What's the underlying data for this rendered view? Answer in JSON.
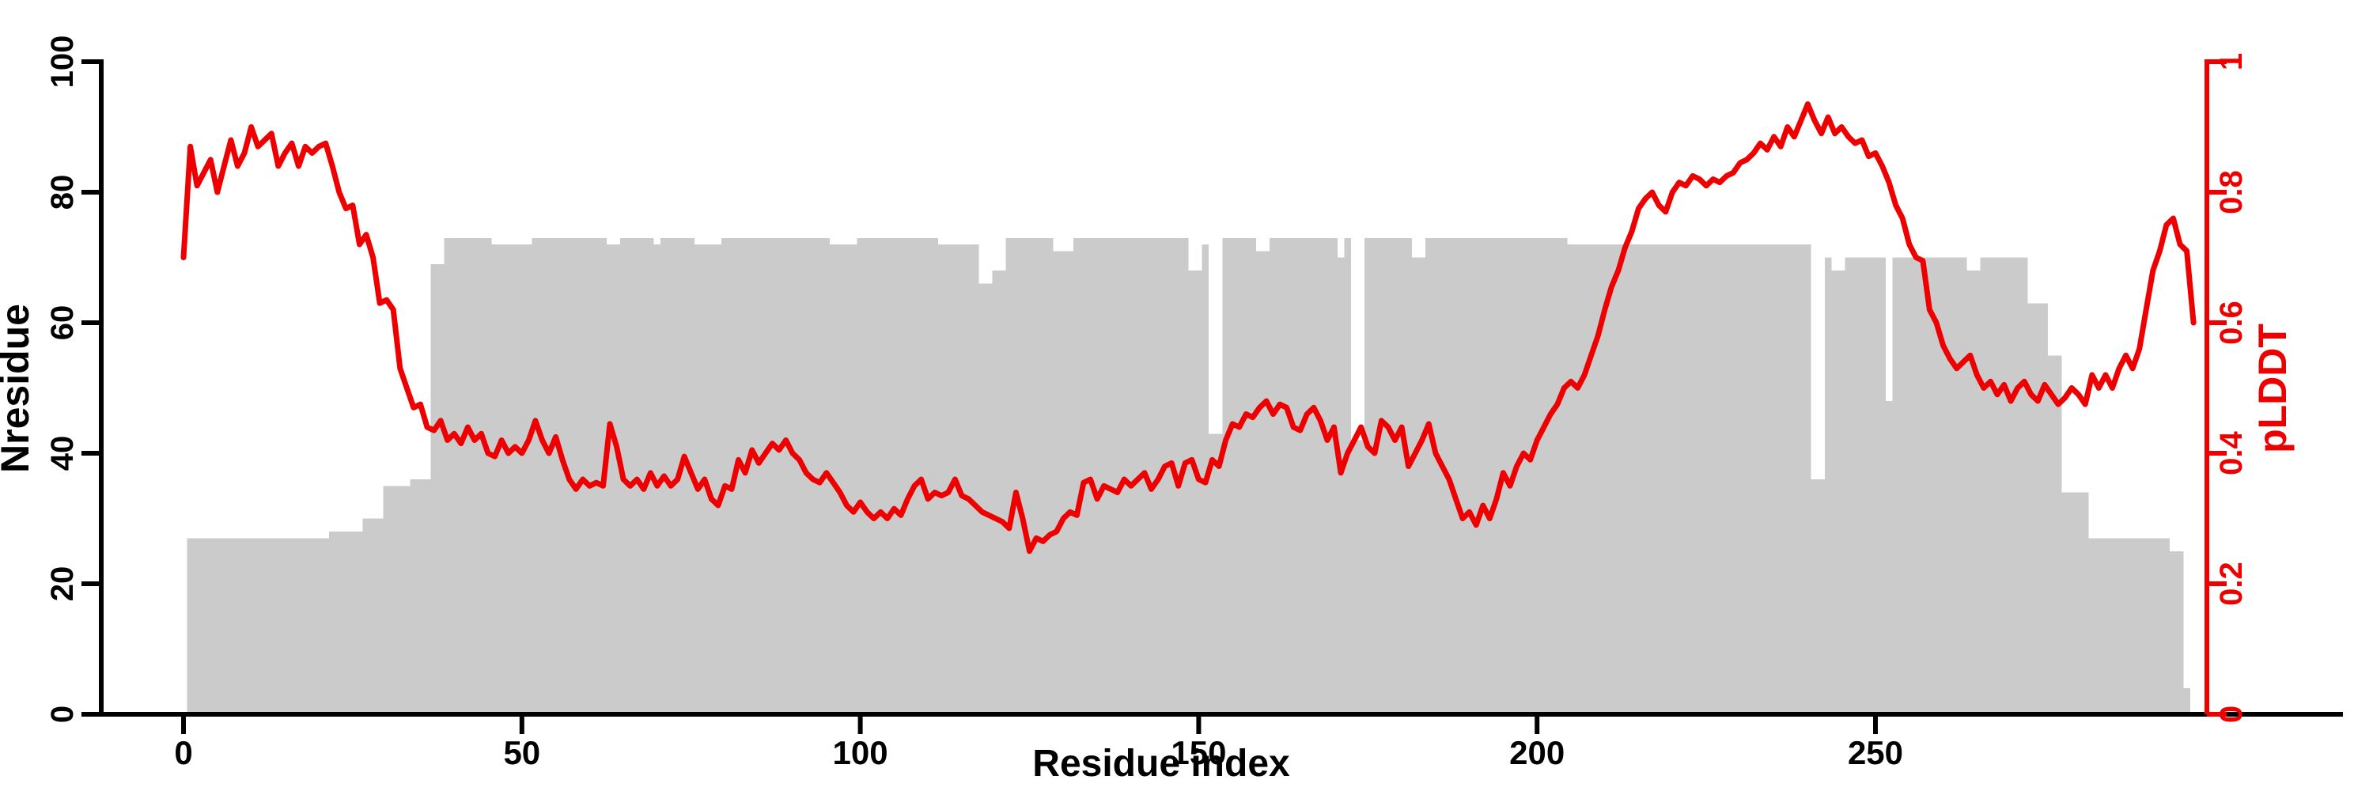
{
  "figure": {
    "background": "#ffffff",
    "bar_color": "#cbcbcb",
    "line_color": "#ee0000",
    "axis_color": "#000000"
  },
  "chart_data": {
    "type": "combo",
    "title": "",
    "legend": "none",
    "grid": false,
    "x": {
      "label": "Residue index",
      "ticks": [
        0,
        50,
        100,
        150,
        200,
        250
      ],
      "min": 0,
      "max": 297
    },
    "y_left": {
      "label": "Nresidue",
      "ticks": [
        0,
        20,
        40,
        60,
        80,
        100
      ],
      "min": 0,
      "max": 100,
      "color": "#000000"
    },
    "y_right": {
      "label": "pLDDT",
      "ticks": [
        0,
        0.2,
        0.4,
        0.6,
        0.8,
        1
      ],
      "min": 0,
      "max": 1,
      "color": "#ee0000"
    },
    "series": [
      {
        "name": "Nresidue",
        "type": "bar",
        "axis": "left",
        "color": "#cbcbcb",
        "segments": [
          [
            1,
            21,
            27
          ],
          [
            22,
            26,
            28
          ],
          [
            27,
            29,
            30
          ],
          [
            30,
            33,
            35
          ],
          [
            34,
            36,
            36
          ],
          [
            37,
            38,
            69
          ],
          [
            39,
            45,
            73
          ],
          [
            46,
            51,
            72
          ],
          [
            52,
            62,
            73
          ],
          [
            63,
            64,
            72
          ],
          [
            65,
            69,
            73
          ],
          [
            70,
            70,
            72
          ],
          [
            71,
            75,
            73
          ],
          [
            76,
            79,
            72
          ],
          [
            80,
            95,
            73
          ],
          [
            96,
            99,
            72
          ],
          [
            100,
            111,
            73
          ],
          [
            112,
            117,
            72
          ],
          [
            118,
            119,
            66
          ],
          [
            120,
            121,
            68
          ],
          [
            122,
            128,
            73
          ],
          [
            129,
            131,
            71
          ],
          [
            132,
            148,
            73
          ],
          [
            149,
            150,
            68
          ],
          [
            151,
            151,
            72
          ],
          [
            152,
            153,
            43
          ],
          [
            154,
            158,
            73
          ],
          [
            159,
            160,
            71
          ],
          [
            161,
            170,
            73
          ],
          [
            171,
            171,
            70
          ],
          [
            172,
            172,
            73
          ],
          [
            173,
            174,
            42
          ],
          [
            175,
            181,
            73
          ],
          [
            182,
            183,
            70
          ],
          [
            184,
            204,
            73
          ],
          [
            205,
            240,
            72
          ],
          [
            241,
            242,
            36
          ],
          [
            243,
            243,
            70
          ],
          [
            244,
            245,
            68
          ],
          [
            246,
            251,
            70
          ],
          [
            252,
            252,
            48
          ],
          [
            253,
            263,
            70
          ],
          [
            264,
            265,
            68
          ],
          [
            266,
            272,
            70
          ],
          [
            273,
            275,
            63
          ],
          [
            276,
            277,
            55
          ],
          [
            278,
            281,
            34
          ],
          [
            282,
            293,
            27
          ],
          [
            294,
            295,
            25
          ],
          [
            296,
            296,
            4
          ]
        ]
      },
      {
        "name": "pLDDT",
        "type": "line",
        "axis": "right",
        "color": "#ee0000",
        "x_start": 0,
        "values": [
          0.7,
          0.87,
          0.81,
          0.83,
          0.85,
          0.8,
          0.84,
          0.88,
          0.84,
          0.86,
          0.9,
          0.87,
          0.88,
          0.89,
          0.84,
          0.86,
          0.875,
          0.84,
          0.87,
          0.86,
          0.87,
          0.875,
          0.84,
          0.8,
          0.775,
          0.78,
          0.72,
          0.735,
          0.7,
          0.63,
          0.635,
          0.62,
          0.53,
          0.5,
          0.47,
          0.475,
          0.44,
          0.435,
          0.45,
          0.42,
          0.43,
          0.415,
          0.44,
          0.42,
          0.43,
          0.4,
          0.395,
          0.42,
          0.4,
          0.41,
          0.4,
          0.42,
          0.45,
          0.42,
          0.4,
          0.425,
          0.39,
          0.36,
          0.345,
          0.36,
          0.35,
          0.355,
          0.35,
          0.445,
          0.41,
          0.36,
          0.35,
          0.36,
          0.345,
          0.37,
          0.35,
          0.365,
          0.35,
          0.36,
          0.395,
          0.37,
          0.345,
          0.36,
          0.33,
          0.32,
          0.35,
          0.345,
          0.39,
          0.37,
          0.405,
          0.385,
          0.4,
          0.415,
          0.405,
          0.42,
          0.4,
          0.39,
          0.37,
          0.36,
          0.355,
          0.37,
          0.355,
          0.34,
          0.32,
          0.31,
          0.325,
          0.31,
          0.3,
          0.31,
          0.3,
          0.315,
          0.305,
          0.33,
          0.35,
          0.36,
          0.33,
          0.34,
          0.335,
          0.34,
          0.36,
          0.335,
          0.33,
          0.32,
          0.31,
          0.305,
          0.3,
          0.295,
          0.285,
          0.34,
          0.3,
          0.25,
          0.27,
          0.265,
          0.275,
          0.28,
          0.3,
          0.31,
          0.305,
          0.355,
          0.36,
          0.33,
          0.35,
          0.345,
          0.34,
          0.36,
          0.35,
          0.36,
          0.37,
          0.345,
          0.36,
          0.38,
          0.385,
          0.35,
          0.385,
          0.39,
          0.36,
          0.355,
          0.39,
          0.38,
          0.42,
          0.445,
          0.44,
          0.46,
          0.455,
          0.47,
          0.48,
          0.46,
          0.475,
          0.47,
          0.44,
          0.435,
          0.46,
          0.47,
          0.45,
          0.42,
          0.44,
          0.37,
          0.4,
          0.42,
          0.44,
          0.41,
          0.4,
          0.45,
          0.44,
          0.42,
          0.44,
          0.38,
          0.4,
          0.42,
          0.445,
          0.4,
          0.38,
          0.36,
          0.33,
          0.3,
          0.31,
          0.29,
          0.32,
          0.3,
          0.33,
          0.37,
          0.35,
          0.38,
          0.4,
          0.39,
          0.42,
          0.44,
          0.46,
          0.475,
          0.5,
          0.51,
          0.5,
          0.52,
          0.55,
          0.58,
          0.62,
          0.655,
          0.68,
          0.715,
          0.74,
          0.775,
          0.79,
          0.8,
          0.78,
          0.77,
          0.8,
          0.815,
          0.81,
          0.825,
          0.82,
          0.81,
          0.82,
          0.815,
          0.825,
          0.83,
          0.845,
          0.85,
          0.86,
          0.875,
          0.865,
          0.885,
          0.87,
          0.9,
          0.885,
          0.91,
          0.935,
          0.91,
          0.89,
          0.915,
          0.89,
          0.9,
          0.885,
          0.875,
          0.88,
          0.855,
          0.86,
          0.84,
          0.815,
          0.78,
          0.76,
          0.72,
          0.7,
          0.695,
          0.62,
          0.6,
          0.565,
          0.545,
          0.53,
          0.54,
          0.55,
          0.52,
          0.5,
          0.51,
          0.49,
          0.505,
          0.48,
          0.5,
          0.51,
          0.49,
          0.48,
          0.505,
          0.49,
          0.475,
          0.485,
          0.5,
          0.49,
          0.475,
          0.52,
          0.5,
          0.52,
          0.5,
          0.53,
          0.55,
          0.53,
          0.56,
          0.62,
          0.68,
          0.71,
          0.75,
          0.76,
          0.72,
          0.71,
          0.6
        ]
      }
    ]
  }
}
